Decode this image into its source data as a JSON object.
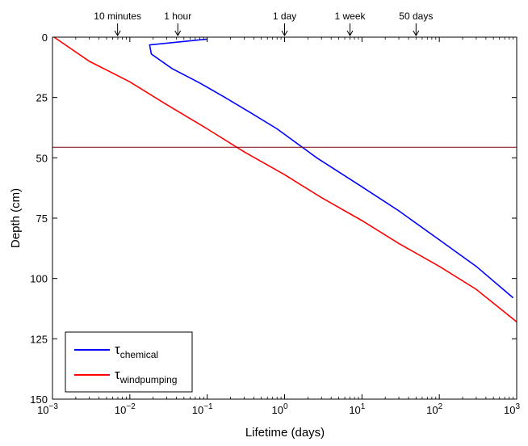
{
  "chart_data": {
    "type": "line",
    "xlabel": "Lifetime (days)",
    "ylabel": "Depth (cm)",
    "x_scale": "log",
    "xlim": [
      0.001,
      1000
    ],
    "ylim": [
      150,
      0
    ],
    "x_ticks": [
      {
        "value": 0.001,
        "base": "10",
        "exp": "−3"
      },
      {
        "value": 0.01,
        "base": "10",
        "exp": "−2"
      },
      {
        "value": 0.1,
        "base": "10",
        "exp": "−1"
      },
      {
        "value": 1,
        "base": "10",
        "exp": "0"
      },
      {
        "value": 10,
        "base": "10",
        "exp": "1"
      },
      {
        "value": 100,
        "base": "10",
        "exp": "2"
      },
      {
        "value": 1000,
        "base": "10",
        "exp": "3"
      }
    ],
    "y_ticks": [
      0,
      25,
      50,
      75,
      100,
      125,
      150
    ],
    "top_markers": [
      {
        "label": "10 minutes",
        "value": 0.00694
      },
      {
        "label": "1 hour",
        "value": 0.04167
      },
      {
        "label": "1 day",
        "value": 1
      },
      {
        "label": "1 week",
        "value": 7
      },
      {
        "label": "50 days",
        "value": 50
      }
    ],
    "hline": {
      "depth": 45.6,
      "color": "#800000"
    },
    "series": [
      {
        "name": "τ",
        "subscript": "chemical",
        "color": "#0000ff",
        "x": [
          0.1,
          0.018,
          0.019,
          0.035,
          0.08,
          0.17,
          0.35,
          0.8,
          2.6,
          10,
          30,
          100,
          300,
          900
        ],
        "y": [
          0.8,
          3.2,
          7,
          13,
          19,
          25,
          31,
          38,
          50,
          62,
          72,
          84,
          95,
          108
        ]
      },
      {
        "name": "τ",
        "subscript": "windpumping",
        "color": "#ff0000",
        "x": [
          0.00105,
          0.003,
          0.01,
          0.03,
          0.1,
          0.3,
          1,
          3,
          10,
          30,
          100,
          300,
          1000
        ],
        "y": [
          0,
          10,
          18.5,
          28,
          38,
          47.5,
          57,
          66.5,
          76,
          85.5,
          95,
          104.5,
          118
        ]
      }
    ],
    "grid": false,
    "legend_position": "bottom-left"
  }
}
